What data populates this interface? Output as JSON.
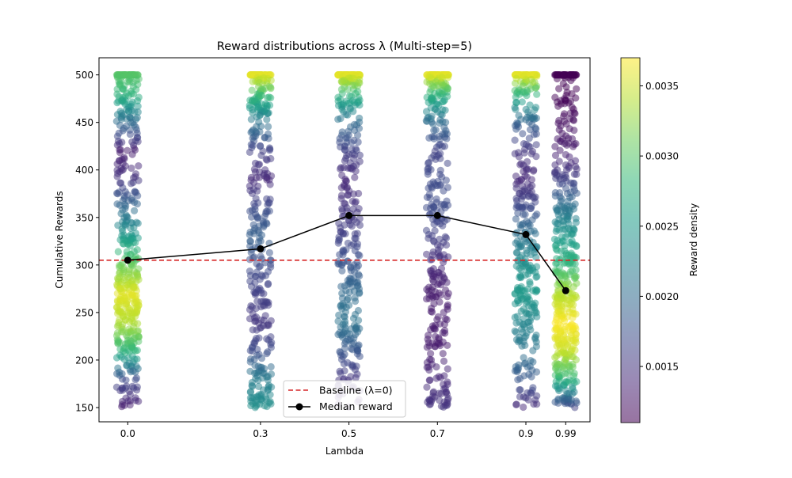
{
  "chart_data": {
    "type": "scatter",
    "title": "Reward distributions across λ (Multi-step=5)",
    "xlabel": "Lambda",
    "ylabel": "Cumulative Rewards",
    "categories": [
      "0.0",
      "0.3",
      "0.5",
      "0.7",
      "0.9",
      "0.99"
    ],
    "xlim": [
      -0.065,
      1.045
    ],
    "ylim": [
      135,
      518
    ],
    "yticks": [
      150,
      200,
      250,
      300,
      350,
      400,
      450,
      500
    ],
    "grid": false,
    "baseline": {
      "label": "Baseline (λ=0)",
      "value": 305,
      "color": "#d62728",
      "style": "dashed"
    },
    "median": {
      "label": "Median reward",
      "x": [
        0.0,
        0.3,
        0.5,
        0.7,
        0.9,
        0.99
      ],
      "values": [
        305,
        317,
        352,
        352,
        332,
        273
      ],
      "color": "#000000"
    },
    "strips": [
      {
        "lambda": 0.0,
        "n": 500,
        "reward_range": [
          150,
          500
        ],
        "clip_count": 45,
        "density_profile": [
          [
            150,
            0.0013
          ],
          [
            180,
            0.0017
          ],
          [
            210,
            0.0028
          ],
          [
            240,
            0.0034
          ],
          [
            270,
            0.0036
          ],
          [
            300,
            0.0031
          ],
          [
            330,
            0.0025
          ],
          [
            360,
            0.002
          ],
          [
            390,
            0.0015
          ],
          [
            420,
            0.0013
          ],
          [
            450,
            0.002
          ],
          [
            480,
            0.0028
          ],
          [
            500,
            0.003
          ]
        ]
      },
      {
        "lambda": 0.3,
        "n": 400,
        "reward_range": [
          150,
          500
        ],
        "clip_count": 55,
        "density_profile": [
          [
            150,
            0.0024
          ],
          [
            180,
            0.0022
          ],
          [
            210,
            0.0017
          ],
          [
            240,
            0.0015
          ],
          [
            270,
            0.0016
          ],
          [
            300,
            0.0017
          ],
          [
            330,
            0.0019
          ],
          [
            360,
            0.0017
          ],
          [
            390,
            0.0014
          ],
          [
            420,
            0.0016
          ],
          [
            450,
            0.0021
          ],
          [
            480,
            0.0029
          ],
          [
            500,
            0.0036
          ]
        ]
      },
      {
        "lambda": 0.5,
        "n": 400,
        "reward_range": [
          150,
          500
        ],
        "clip_count": 70,
        "density_profile": [
          [
            150,
            0.0013
          ],
          [
            180,
            0.0015
          ],
          [
            210,
            0.0018
          ],
          [
            240,
            0.0021
          ],
          [
            270,
            0.002
          ],
          [
            300,
            0.0018
          ],
          [
            330,
            0.0016
          ],
          [
            360,
            0.0015
          ],
          [
            390,
            0.0014
          ],
          [
            420,
            0.0016
          ],
          [
            450,
            0.002
          ],
          [
            480,
            0.0028
          ],
          [
            500,
            0.0036
          ]
        ]
      },
      {
        "lambda": 0.7,
        "n": 400,
        "reward_range": [
          150,
          500
        ],
        "clip_count": 70,
        "density_profile": [
          [
            150,
            0.0015
          ],
          [
            180,
            0.0014
          ],
          [
            210,
            0.0013
          ],
          [
            240,
            0.0013
          ],
          [
            270,
            0.0013
          ],
          [
            300,
            0.0014
          ],
          [
            330,
            0.0016
          ],
          [
            360,
            0.0017
          ],
          [
            390,
            0.0017
          ],
          [
            420,
            0.0016
          ],
          [
            450,
            0.002
          ],
          [
            480,
            0.0028
          ],
          [
            500,
            0.0036
          ]
        ]
      },
      {
        "lambda": 0.9,
        "n": 400,
        "reward_range": [
          150,
          500
        ],
        "clip_count": 55,
        "density_profile": [
          [
            150,
            0.0014
          ],
          [
            180,
            0.0018
          ],
          [
            210,
            0.0021
          ],
          [
            240,
            0.0023
          ],
          [
            270,
            0.0025
          ],
          [
            300,
            0.0024
          ],
          [
            330,
            0.0021
          ],
          [
            360,
            0.0017
          ],
          [
            390,
            0.0014
          ],
          [
            420,
            0.0015
          ],
          [
            450,
            0.0019
          ],
          [
            480,
            0.0028
          ],
          [
            500,
            0.0036
          ]
        ]
      },
      {
        "lambda": 0.99,
        "n": 500,
        "reward_range": [
          150,
          500
        ],
        "clip_count": 40,
        "density_profile": [
          [
            150,
            0.0016
          ],
          [
            180,
            0.0028
          ],
          [
            210,
            0.0035
          ],
          [
            240,
            0.0037
          ],
          [
            270,
            0.0034
          ],
          [
            300,
            0.0028
          ],
          [
            330,
            0.0025
          ],
          [
            360,
            0.0021
          ],
          [
            390,
            0.0016
          ],
          [
            420,
            0.0013
          ],
          [
            450,
            0.0012
          ],
          [
            480,
            0.0011
          ],
          [
            500,
            0.0011
          ]
        ]
      }
    ],
    "colorbar": {
      "label": "Reward density",
      "colormap": "viridis",
      "range": [
        0.0011,
        0.0037
      ],
      "ticks": [
        "0.0015",
        "0.0020",
        "0.0025",
        "0.0030",
        "0.0035"
      ],
      "tick_values": [
        0.0015,
        0.002,
        0.0025,
        0.003,
        0.0035
      ]
    },
    "legend": {
      "placement": "bottom-center"
    }
  }
}
